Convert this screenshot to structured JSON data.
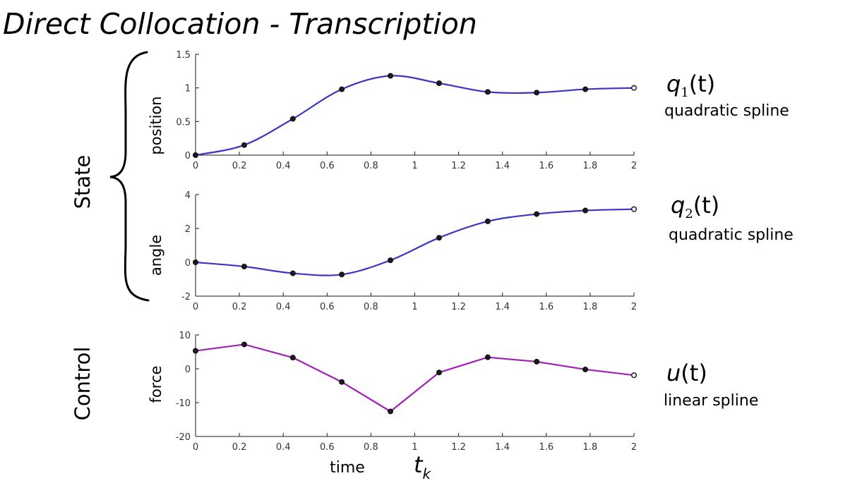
{
  "slide": {
    "title": "Direct Collocation - Transcription",
    "state_label": "State",
    "control_label": "Control",
    "time_label": "time",
    "tk_main": "t",
    "tk_sub": "k"
  },
  "annotations": [
    {
      "var": "q",
      "sub": "1",
      "rest": "(t)",
      "desc": "quadratic spline"
    },
    {
      "var": "q",
      "sub": "2",
      "rest": "(t)",
      "desc": "quadratic spline"
    },
    {
      "var": "u",
      "sub": "",
      "rest": "(t)",
      "desc": "linear spline"
    }
  ],
  "colors": {
    "state_line": "#3b35c4",
    "control_line": "#a21fb8",
    "marker_fill": "#1c1c1c"
  },
  "chart_data": [
    {
      "type": "line",
      "ylabel": "position",
      "xlabel": "",
      "xlim": [
        0,
        2
      ],
      "ylim": [
        0,
        1.5
      ],
      "xticks": [
        "0",
        "0.2",
        "0.4",
        "0.6",
        "0.8",
        "1",
        "1.2",
        "1.4",
        "1.6",
        "1.8",
        "2"
      ],
      "yticks": [
        "0",
        "0.5",
        "1",
        "1.5"
      ],
      "curve": "smooth",
      "series": [
        {
          "x": [
            0,
            0.222,
            0.444,
            0.667,
            0.889,
            1.111,
            1.333,
            1.556,
            1.778,
            2.0
          ],
          "y": [
            0.0,
            0.15,
            0.54,
            0.98,
            1.18,
            1.07,
            0.94,
            0.93,
            0.98,
            1.0
          ]
        }
      ]
    },
    {
      "type": "line",
      "ylabel": "angle",
      "xlabel": "",
      "xlim": [
        0,
        2
      ],
      "ylim": [
        -2,
        4
      ],
      "xticks": [
        "0",
        "0.2",
        "0.4",
        "0.6",
        "0.8",
        "1",
        "1.2",
        "1.4",
        "1.6",
        "1.8",
        "2"
      ],
      "yticks": [
        "-2",
        "0",
        "2",
        "4"
      ],
      "curve": "smooth",
      "series": [
        {
          "x": [
            0,
            0.222,
            0.444,
            0.667,
            0.889,
            1.111,
            1.333,
            1.556,
            1.778,
            2.0
          ],
          "y": [
            0.0,
            -0.25,
            -0.65,
            -0.72,
            0.12,
            1.45,
            2.42,
            2.85,
            3.06,
            3.14
          ]
        }
      ]
    },
    {
      "type": "line",
      "ylabel": "force",
      "xlabel": "time",
      "xlim": [
        0,
        2
      ],
      "ylim": [
        -20,
        10
      ],
      "xticks": [
        "0",
        "0.2",
        "0.4",
        "0.6",
        "0.8",
        "1",
        "1.2",
        "1.4",
        "1.6",
        "1.8",
        "2"
      ],
      "yticks": [
        "-20",
        "-10",
        "0",
        "10"
      ],
      "curve": "linear",
      "series": [
        {
          "x": [
            0,
            0.222,
            0.444,
            0.667,
            0.889,
            1.111,
            1.333,
            1.556,
            1.778,
            2.0
          ],
          "y": [
            5.3,
            7.2,
            3.3,
            -3.9,
            -12.6,
            -1.1,
            3.4,
            2.1,
            -0.2,
            -1.9
          ]
        }
      ]
    }
  ]
}
